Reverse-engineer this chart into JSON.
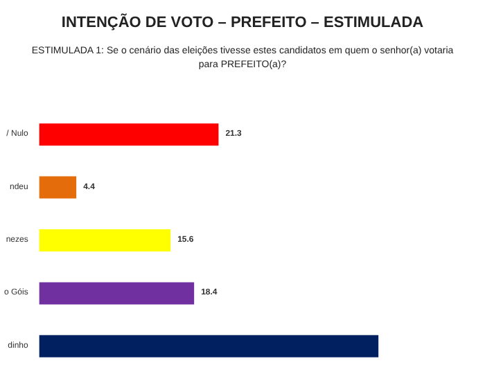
{
  "chart_data": {
    "type": "bar",
    "orientation": "horizontal",
    "title": "INTENÇÃO DE VOTO – PREFEITO – ESTIMULADA",
    "subtitle": "ESTIMULADA 1: Se o cenário das eleições tivesse estes candidatos em quem o senhor(a) votaria\npara PREFEITO(a)?",
    "categories": [
      "/ Nulo",
      "ndeu",
      "nezes",
      "o Góis",
      "dinho"
    ],
    "values": [
      21.3,
      4.4,
      15.6,
      18.4,
      40.3
    ],
    "colors": [
      "#ff0000",
      "#e46c0a",
      "#ffff00",
      "#7030a0",
      "#002060"
    ],
    "value_labels": [
      "21.3",
      "4.4",
      "15.6",
      "18.4",
      null
    ],
    "grid": false
  }
}
